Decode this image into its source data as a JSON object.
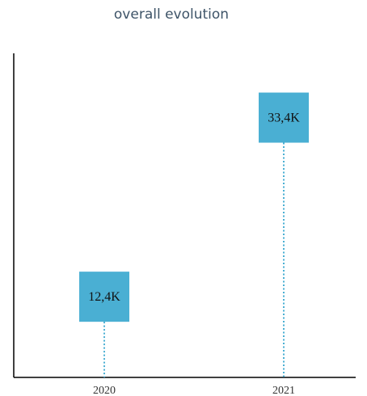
{
  "chart_data": {
    "type": "lollipop",
    "title": "overall evolution",
    "categories": [
      "2020",
      "2021"
    ],
    "values": [
      12.4,
      33.4
    ],
    "value_labels": [
      "12,4K",
      "33,4K"
    ],
    "unit": "K",
    "ylim": [
      0,
      38
    ],
    "marker_color": "#4aafd3",
    "stem_color": "#4aafd3",
    "stem_style": "dotted",
    "axis_color": "#000000",
    "grid": false,
    "legend": "none"
  }
}
